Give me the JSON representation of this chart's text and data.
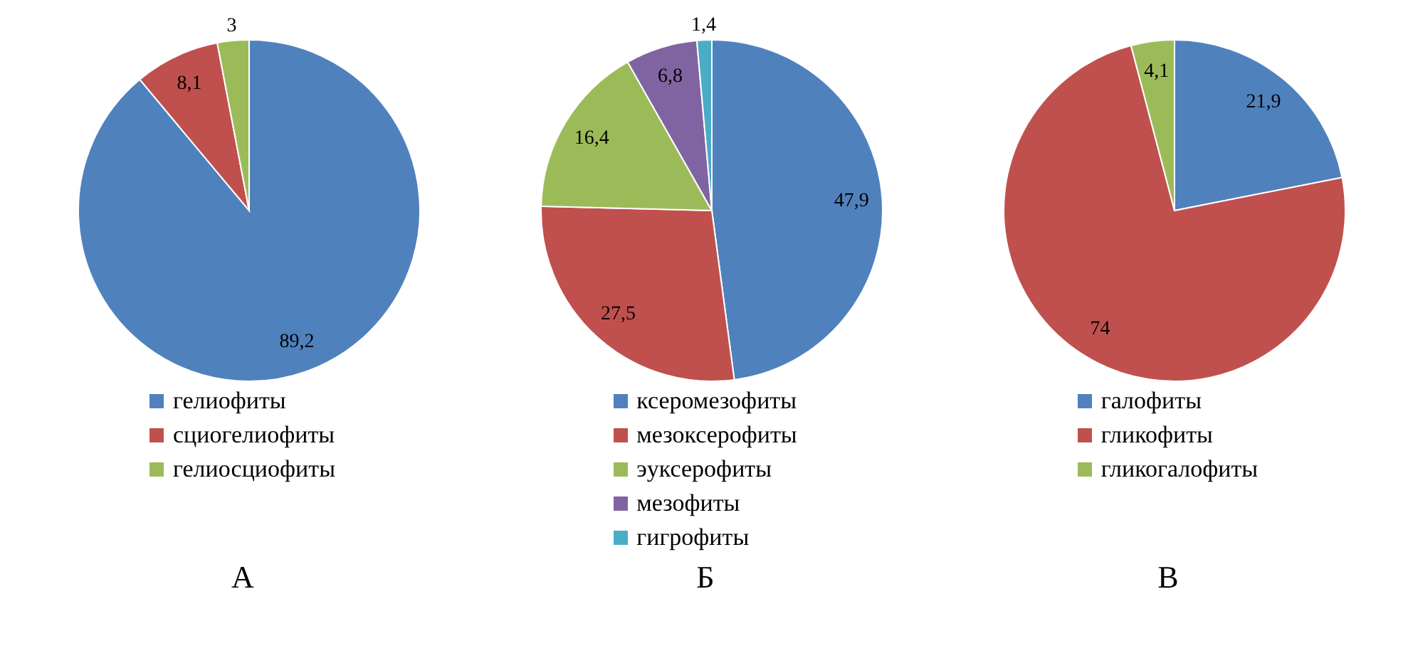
{
  "chart_data": [
    {
      "type": "pie",
      "title": "А",
      "categories": [
        "гелиофиты",
        "сциогелиофиты",
        "гелиосциофиты"
      ],
      "values": [
        89.2,
        8.1,
        3
      ],
      "value_labels": [
        "89,2",
        "8,1",
        "3"
      ],
      "colors": [
        "#4f81bd",
        "#c0504d",
        "#9bbb59"
      ],
      "legend": "bottom"
    },
    {
      "type": "pie",
      "title": "Б",
      "categories": [
        "ксеромезофиты",
        "мезоксерофиты",
        "эуксерофиты",
        "мезофиты",
        "гигрофиты"
      ],
      "values": [
        47.9,
        27.5,
        16.4,
        6.8,
        1.4
      ],
      "value_labels": [
        "47,9",
        "27,5",
        "16,4",
        "6,8",
        "1,4"
      ],
      "colors": [
        "#4f81bd",
        "#c0504d",
        "#9bbb59",
        "#8064a2",
        "#4bacc6"
      ],
      "legend": "bottom"
    },
    {
      "type": "pie",
      "title": "В",
      "categories": [
        "галофиты",
        "гликофиты",
        "гликогалофиты"
      ],
      "values": [
        21.9,
        74,
        4.1
      ],
      "value_labels": [
        "21,9",
        "74",
        "4,1"
      ],
      "colors": [
        "#4f81bd",
        "#c0504d",
        "#9bbb59"
      ],
      "legend": "bottom"
    }
  ]
}
